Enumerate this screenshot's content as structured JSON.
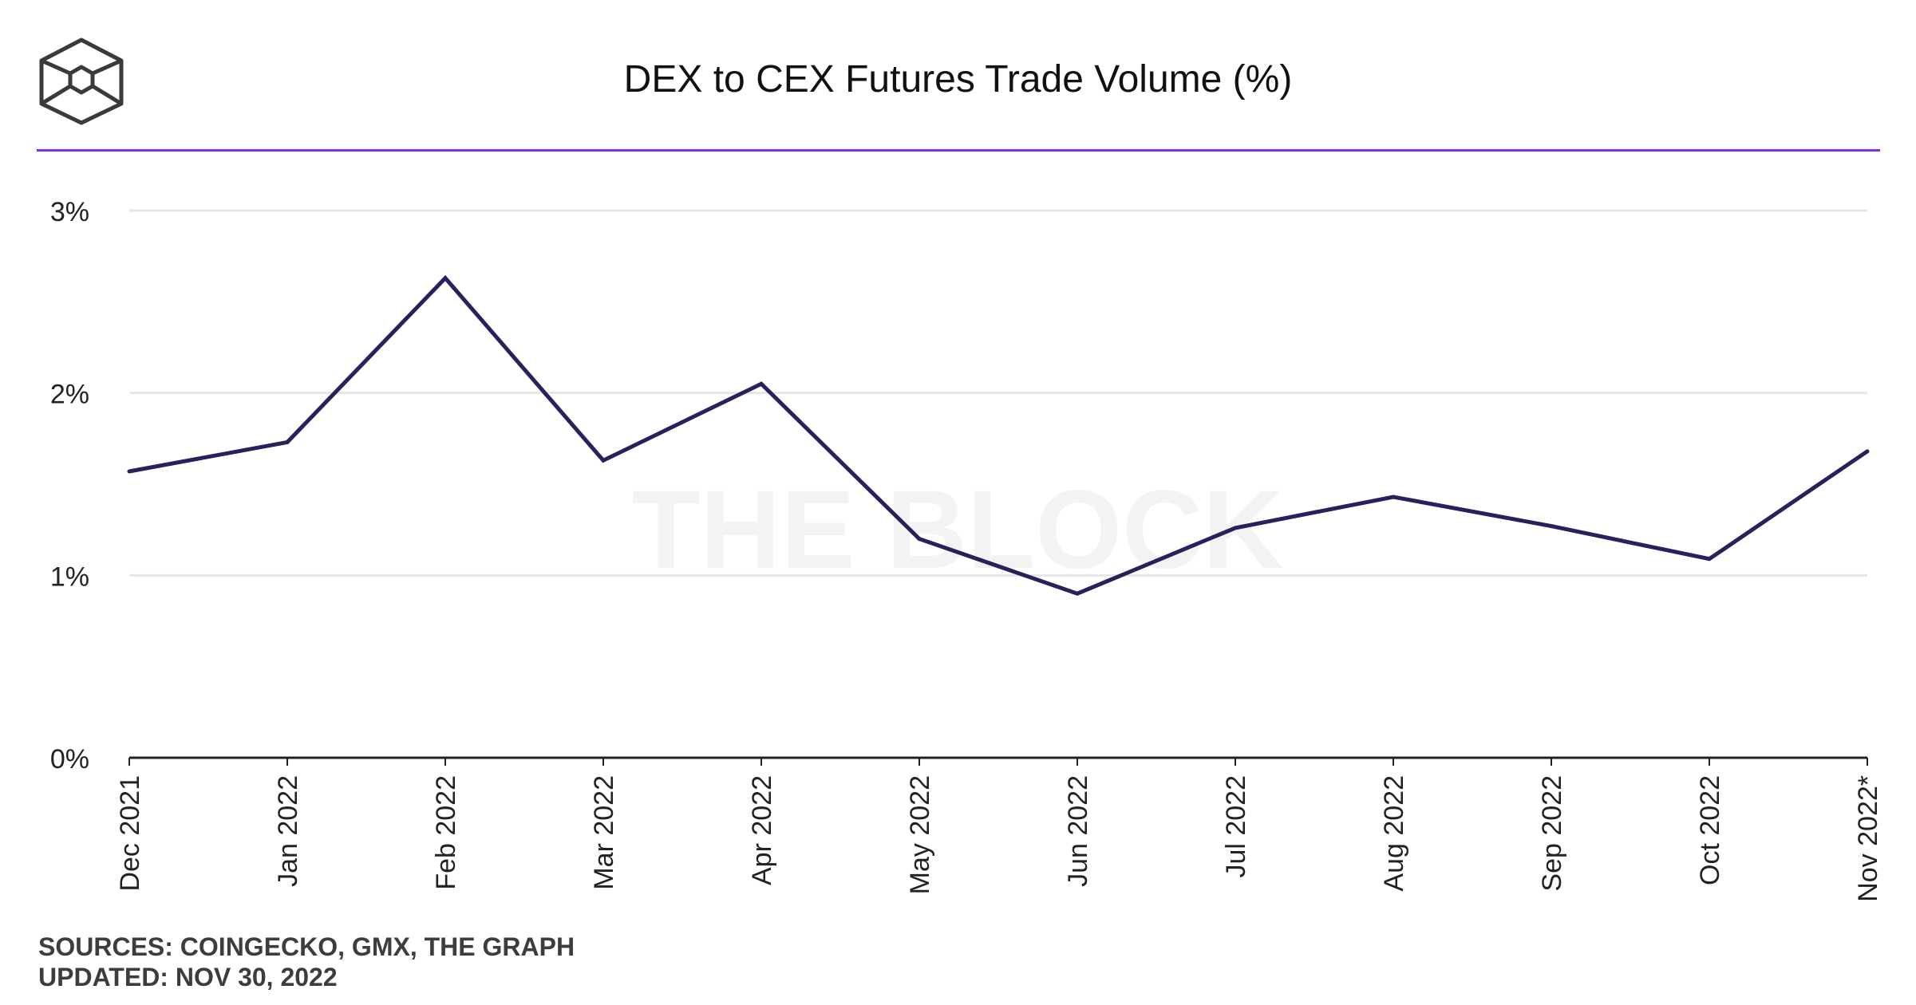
{
  "header": {
    "title": "DEX to CEX Futures Trade Volume (%)",
    "logo_icon": "the-block-cube-logo-icon"
  },
  "watermark": "THE BLOCK",
  "colors": {
    "line": "#2b1f5c",
    "divider": "#8a2be2",
    "grid": "#e6e6e6",
    "axis": "#222222",
    "watermark": "#f3f3f3"
  },
  "chart_data": {
    "type": "line",
    "categories": [
      "Dec 2021",
      "Jan 2022",
      "Feb 2022",
      "Mar 2022",
      "Apr 2022",
      "May 2022",
      "Jun 2022",
      "Jul 2022",
      "Aug 2022",
      "Sep 2022",
      "Oct 2022",
      "Nov 2022*"
    ],
    "series": [
      {
        "values": [
          1.57,
          1.73,
          2.63,
          1.63,
          2.05,
          1.2,
          0.9,
          1.26,
          1.43,
          1.27,
          1.09,
          1.68
        ]
      }
    ],
    "y_ticks": [
      {
        "value": 0,
        "label": "0%"
      },
      {
        "value": 1,
        "label": "1%"
      },
      {
        "value": 2,
        "label": "2%"
      },
      {
        "value": 3,
        "label": "3%"
      }
    ],
    "ylim": [
      0,
      3
    ],
    "grid": true,
    "legend": "none"
  },
  "footer": {
    "sources": "SOURCES: COINGECKO, GMX, THE GRAPH",
    "updated": "UPDATED: NOV 30, 2022"
  }
}
